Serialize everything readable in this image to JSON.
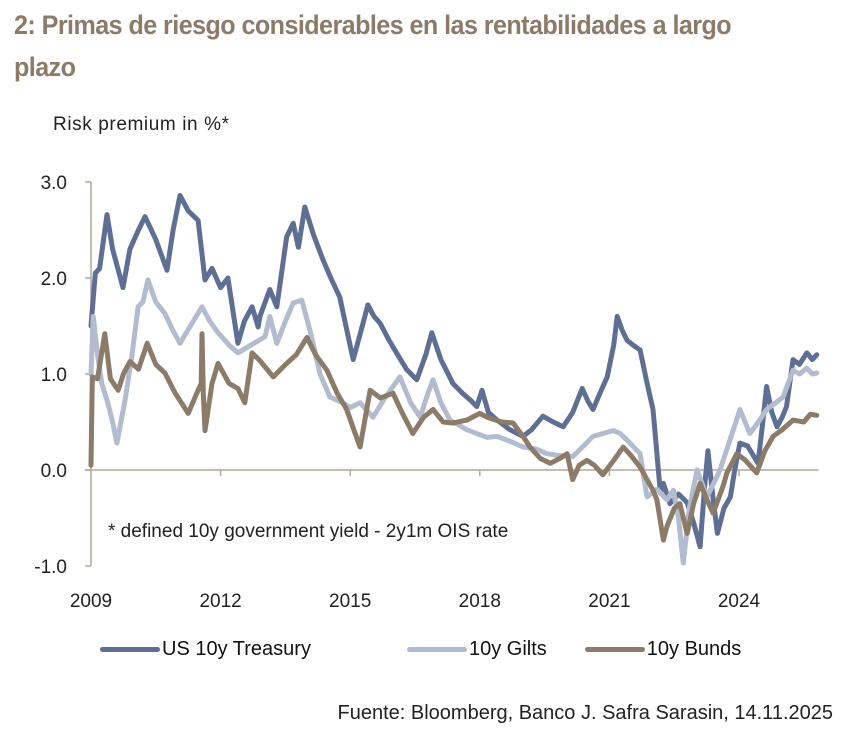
{
  "header": {
    "title": "2: Primas de riesgo considerables en las rentabilidades a largo plazo"
  },
  "footer": {
    "source": "Fuente: Bloomberg, Banco J. Safra Sarasin, 14.11.2025"
  },
  "chart_data": {
    "type": "line",
    "title": "2: Primas de riesgo considerables en las rentabilidades a largo plazo",
    "ylabel": "Risk premium in %*",
    "xlabel": "",
    "annotation": "* defined 10y government yield - 2y1m OIS rate",
    "xlim": [
      2009,
      2025.8
    ],
    "ylim": [
      -1.0,
      3.0
    ],
    "x_ticks": [
      2009,
      2012,
      2015,
      2018,
      2021,
      2024
    ],
    "x_tick_labels": [
      "2009",
      "2012",
      "2015",
      "2018",
      "2021",
      "2024"
    ],
    "y_ticks": [
      -1.0,
      0.0,
      1.0,
      2.0,
      3.0
    ],
    "y_tick_labels": [
      "-1.0",
      "0.0",
      "1.0",
      "2.0",
      "3.0"
    ],
    "grid": false,
    "legend_position": "bottom",
    "series": [
      {
        "name": "US 10y Treasury",
        "color": "#5f6f94",
        "points": [
          [
            2009.0,
            1.5
          ],
          [
            2009.1,
            2.05
          ],
          [
            2009.2,
            2.1
          ],
          [
            2009.37,
            2.66
          ],
          [
            2009.5,
            2.3
          ],
          [
            2009.74,
            1.9
          ],
          [
            2009.9,
            2.3
          ],
          [
            2010.1,
            2.5
          ],
          [
            2010.25,
            2.64
          ],
          [
            2010.5,
            2.4
          ],
          [
            2010.76,
            2.08
          ],
          [
            2010.9,
            2.5
          ],
          [
            2011.06,
            2.86
          ],
          [
            2011.25,
            2.7
          ],
          [
            2011.48,
            2.6
          ],
          [
            2011.64,
            1.98
          ],
          [
            2011.8,
            2.1
          ],
          [
            2012.0,
            1.9
          ],
          [
            2012.17,
            2.0
          ],
          [
            2012.4,
            1.32
          ],
          [
            2012.55,
            1.55
          ],
          [
            2012.73,
            1.7
          ],
          [
            2012.87,
            1.49
          ],
          [
            2012.91,
            1.6
          ],
          [
            2013.14,
            1.88
          ],
          [
            2013.3,
            1.7
          ],
          [
            2013.53,
            2.43
          ],
          [
            2013.68,
            2.57
          ],
          [
            2013.8,
            2.32
          ],
          [
            2013.95,
            2.74
          ],
          [
            2014.15,
            2.45
          ],
          [
            2014.37,
            2.19
          ],
          [
            2014.55,
            2.0
          ],
          [
            2014.76,
            1.8
          ],
          [
            2014.95,
            1.4
          ],
          [
            2015.07,
            1.15
          ],
          [
            2015.25,
            1.45
          ],
          [
            2015.41,
            1.72
          ],
          [
            2015.55,
            1.6
          ],
          [
            2015.69,
            1.53
          ],
          [
            2015.9,
            1.35
          ],
          [
            2016.1,
            1.2
          ],
          [
            2016.3,
            1.05
          ],
          [
            2016.54,
            0.94
          ],
          [
            2016.75,
            1.2
          ],
          [
            2016.89,
            1.43
          ],
          [
            2017.1,
            1.15
          ],
          [
            2017.38,
            0.9
          ],
          [
            2017.6,
            0.8
          ],
          [
            2017.8,
            0.72
          ],
          [
            2017.93,
            0.66
          ],
          [
            2018.05,
            0.83
          ],
          [
            2018.2,
            0.6
          ],
          [
            2018.4,
            0.52
          ],
          [
            2018.7,
            0.42
          ],
          [
            2019.0,
            0.35
          ],
          [
            2019.2,
            0.42
          ],
          [
            2019.46,
            0.56
          ],
          [
            2019.7,
            0.5
          ],
          [
            2019.93,
            0.45
          ],
          [
            2020.15,
            0.6
          ],
          [
            2020.37,
            0.85
          ],
          [
            2020.5,
            0.72
          ],
          [
            2020.62,
            0.63
          ],
          [
            2020.8,
            0.82
          ],
          [
            2020.95,
            0.97
          ],
          [
            2021.1,
            1.3
          ],
          [
            2021.18,
            1.6
          ],
          [
            2021.3,
            1.45
          ],
          [
            2021.41,
            1.35
          ],
          [
            2021.55,
            1.3
          ],
          [
            2021.71,
            1.25
          ],
          [
            2021.85,
            0.95
          ],
          [
            2022.01,
            0.63
          ],
          [
            2022.18,
            -0.24
          ],
          [
            2022.25,
            -0.14
          ],
          [
            2022.4,
            -0.35
          ],
          [
            2022.6,
            -0.25
          ],
          [
            2022.8,
            -0.34
          ],
          [
            2022.95,
            -0.55
          ],
          [
            2023.1,
            -0.8
          ],
          [
            2023.2,
            -0.2
          ],
          [
            2023.28,
            0.2
          ],
          [
            2023.4,
            -0.3
          ],
          [
            2023.5,
            -0.66
          ],
          [
            2023.65,
            -0.4
          ],
          [
            2023.8,
            -0.28
          ],
          [
            2023.9,
            0.0
          ],
          [
            2024.02,
            0.28
          ],
          [
            2024.2,
            0.25
          ],
          [
            2024.44,
            0.07
          ],
          [
            2024.55,
            0.5
          ],
          [
            2024.64,
            0.87
          ],
          [
            2024.76,
            0.6
          ],
          [
            2024.88,
            0.45
          ],
          [
            2025.0,
            0.55
          ],
          [
            2025.1,
            0.66
          ],
          [
            2025.25,
            1.15
          ],
          [
            2025.4,
            1.1
          ],
          [
            2025.57,
            1.22
          ],
          [
            2025.7,
            1.15
          ],
          [
            2025.8,
            1.2
          ]
        ]
      },
      {
        "name": "10y Gilts",
        "color": "#b3bccf",
        "points": [
          [
            2009.0,
            1.0
          ],
          [
            2009.05,
            1.6
          ],
          [
            2009.15,
            1.2
          ],
          [
            2009.25,
            0.9
          ],
          [
            2009.39,
            0.7
          ],
          [
            2009.5,
            0.5
          ],
          [
            2009.6,
            0.28
          ],
          [
            2009.79,
            0.73
          ],
          [
            2009.95,
            1.2
          ],
          [
            2010.09,
            1.7
          ],
          [
            2010.2,
            1.75
          ],
          [
            2010.32,
            1.98
          ],
          [
            2010.5,
            1.75
          ],
          [
            2010.71,
            1.63
          ],
          [
            2010.9,
            1.45
          ],
          [
            2011.06,
            1.32
          ],
          [
            2011.3,
            1.5
          ],
          [
            2011.57,
            1.7
          ],
          [
            2011.75,
            1.55
          ],
          [
            2011.94,
            1.43
          ],
          [
            2012.2,
            1.3
          ],
          [
            2012.4,
            1.22
          ],
          [
            2012.7,
            1.3
          ],
          [
            2013.03,
            1.39
          ],
          [
            2013.14,
            1.6
          ],
          [
            2013.3,
            1.32
          ],
          [
            2013.5,
            1.55
          ],
          [
            2013.68,
            1.74
          ],
          [
            2013.88,
            1.77
          ],
          [
            2014.1,
            1.4
          ],
          [
            2014.3,
            1.0
          ],
          [
            2014.53,
            0.76
          ],
          [
            2014.83,
            0.7
          ],
          [
            2015.0,
            0.65
          ],
          [
            2015.23,
            0.7
          ],
          [
            2015.53,
            0.55
          ],
          [
            2015.8,
            0.75
          ],
          [
            2016.15,
            0.97
          ],
          [
            2016.4,
            0.7
          ],
          [
            2016.62,
            0.55
          ],
          [
            2016.8,
            0.8
          ],
          [
            2016.92,
            0.94
          ],
          [
            2017.1,
            0.7
          ],
          [
            2017.31,
            0.52
          ],
          [
            2017.7,
            0.42
          ],
          [
            2018.17,
            0.34
          ],
          [
            2018.4,
            0.35
          ],
          [
            2018.7,
            0.3
          ],
          [
            2019.0,
            0.24
          ],
          [
            2019.3,
            0.22
          ],
          [
            2019.55,
            0.17
          ],
          [
            2019.85,
            0.15
          ],
          [
            2020.15,
            0.14
          ],
          [
            2020.4,
            0.25
          ],
          [
            2020.62,
            0.35
          ],
          [
            2020.85,
            0.38
          ],
          [
            2021.09,
            0.41
          ],
          [
            2021.25,
            0.38
          ],
          [
            2021.41,
            0.31
          ],
          [
            2021.71,
            0.17
          ],
          [
            2021.87,
            -0.28
          ],
          [
            2022.1,
            -0.2
          ],
          [
            2022.33,
            -0.31
          ],
          [
            2022.48,
            -0.21
          ],
          [
            2022.6,
            -0.5
          ],
          [
            2022.71,
            -0.97
          ],
          [
            2022.85,
            -0.4
          ],
          [
            2023.03,
            0.0
          ],
          [
            2023.26,
            -0.28
          ],
          [
            2023.4,
            -0.15
          ],
          [
            2023.56,
            0.0
          ],
          [
            2023.79,
            0.31
          ],
          [
            2024.02,
            0.63
          ],
          [
            2024.25,
            0.38
          ],
          [
            2024.45,
            0.5
          ],
          [
            2024.64,
            0.63
          ],
          [
            2024.85,
            0.7
          ],
          [
            2025.02,
            0.76
          ],
          [
            2025.25,
            1.04
          ],
          [
            2025.4,
            1.0
          ],
          [
            2025.57,
            1.06
          ],
          [
            2025.7,
            1.0
          ],
          [
            2025.8,
            1.01
          ]
        ]
      },
      {
        "name": "10y Bunds",
        "color": "#8c7b69",
        "points": [
          [
            2009.0,
            0.05
          ],
          [
            2009.03,
            0.97
          ],
          [
            2009.15,
            0.95
          ],
          [
            2009.32,
            1.42
          ],
          [
            2009.45,
            0.95
          ],
          [
            2009.63,
            0.83
          ],
          [
            2009.75,
            1.0
          ],
          [
            2009.9,
            1.13
          ],
          [
            2010.1,
            1.05
          ],
          [
            2010.3,
            1.32
          ],
          [
            2010.5,
            1.1
          ],
          [
            2010.71,
            1.01
          ],
          [
            2010.95,
            0.8
          ],
          [
            2011.25,
            0.59
          ],
          [
            2011.45,
            0.8
          ],
          [
            2011.55,
            0.9
          ],
          [
            2011.57,
            1.42
          ],
          [
            2011.6,
            0.8
          ],
          [
            2011.64,
            0.41
          ],
          [
            2011.8,
            0.9
          ],
          [
            2011.94,
            1.11
          ],
          [
            2012.2,
            0.9
          ],
          [
            2012.4,
            0.85
          ],
          [
            2012.56,
            0.7
          ],
          [
            2012.73,
            1.22
          ],
          [
            2012.91,
            1.14
          ],
          [
            2013.22,
            0.97
          ],
          [
            2013.53,
            1.11
          ],
          [
            2013.75,
            1.2
          ],
          [
            2014.0,
            1.38
          ],
          [
            2014.2,
            1.2
          ],
          [
            2014.46,
            1.04
          ],
          [
            2014.7,
            0.8
          ],
          [
            2014.92,
            0.63
          ],
          [
            2015.1,
            0.4
          ],
          [
            2015.23,
            0.24
          ],
          [
            2015.46,
            0.83
          ],
          [
            2015.7,
            0.75
          ],
          [
            2015.99,
            0.8
          ],
          [
            2016.2,
            0.6
          ],
          [
            2016.45,
            0.38
          ],
          [
            2016.7,
            0.55
          ],
          [
            2016.92,
            0.63
          ],
          [
            2017.15,
            0.5
          ],
          [
            2017.38,
            0.49
          ],
          [
            2017.7,
            0.52
          ],
          [
            2018.0,
            0.59
          ],
          [
            2018.17,
            0.55
          ],
          [
            2018.5,
            0.5
          ],
          [
            2018.77,
            0.49
          ],
          [
            2019.0,
            0.35
          ],
          [
            2019.16,
            0.24
          ],
          [
            2019.4,
            0.12
          ],
          [
            2019.63,
            0.07
          ],
          [
            2019.85,
            0.12
          ],
          [
            2020.02,
            0.17
          ],
          [
            2020.15,
            -0.1
          ],
          [
            2020.3,
            0.05
          ],
          [
            2020.48,
            0.1
          ],
          [
            2020.65,
            0.05
          ],
          [
            2020.85,
            -0.05
          ],
          [
            2021.1,
            0.1
          ],
          [
            2021.32,
            0.24
          ],
          [
            2021.5,
            0.15
          ],
          [
            2021.71,
            0.03
          ],
          [
            2021.87,
            -0.1
          ],
          [
            2022.01,
            -0.21
          ],
          [
            2022.1,
            -0.31
          ],
          [
            2022.25,
            -0.73
          ],
          [
            2022.33,
            -0.59
          ],
          [
            2022.5,
            -0.4
          ],
          [
            2022.63,
            -0.35
          ],
          [
            2022.8,
            -0.66
          ],
          [
            2022.95,
            -0.35
          ],
          [
            2023.1,
            -0.14
          ],
          [
            2023.25,
            -0.3
          ],
          [
            2023.4,
            -0.45
          ],
          [
            2023.63,
            -0.17
          ],
          [
            2023.72,
            -0.03
          ],
          [
            2023.95,
            0.17
          ],
          [
            2024.15,
            0.1
          ],
          [
            2024.41,
            -0.03
          ],
          [
            2024.6,
            0.2
          ],
          [
            2024.79,
            0.35
          ],
          [
            2025.0,
            0.42
          ],
          [
            2025.25,
            0.52
          ],
          [
            2025.5,
            0.5
          ],
          [
            2025.65,
            0.58
          ],
          [
            2025.8,
            0.57
          ]
        ]
      }
    ]
  }
}
